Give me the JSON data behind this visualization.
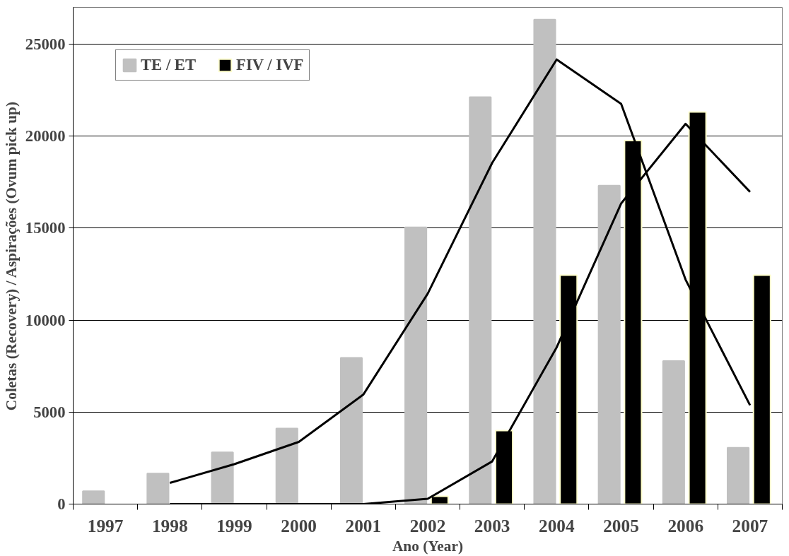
{
  "chart_data": {
    "type": "bar",
    "xlabel": "Ano (Year)",
    "ylabel": "Coletas (Recovery) / Aspirações (Ovum pick up)",
    "categories": [
      "1997",
      "1998",
      "1999",
      "2000",
      "2001",
      "2002",
      "2003",
      "2004",
      "2005",
      "2006",
      "2007"
    ],
    "series": [
      {
        "name": "TE / ET",
        "color": "#c0c0c0",
        "values": [
          700,
          1660,
          2810,
          4110,
          7950,
          15050,
          22120,
          26340,
          17310,
          7780,
          3060
        ]
      },
      {
        "name": "FIV / IVF",
        "color": "#000000",
        "values": [
          null,
          null,
          null,
          null,
          null,
          420,
          3990,
          12440,
          19760,
          21320,
          12440
        ]
      },
      {
        "type": "line",
        "color": "#000000",
        "values": [
          null,
          1150,
          2170,
          3380,
          5950,
          11440,
          18550,
          24170,
          21760,
          12200,
          5370
        ]
      },
      {
        "type": "line",
        "color": "#000000",
        "values": [
          null,
          0,
          0,
          0,
          0,
          290,
          2320,
          8520,
          16340,
          20670,
          16970
        ]
      }
    ],
    "ylim": [
      0,
      27000
    ],
    "yticks": [
      0,
      5000,
      10000,
      15000,
      20000,
      25000
    ],
    "grid": "y",
    "legend": "top left",
    "marker": "none",
    "line_style": "solid"
  }
}
